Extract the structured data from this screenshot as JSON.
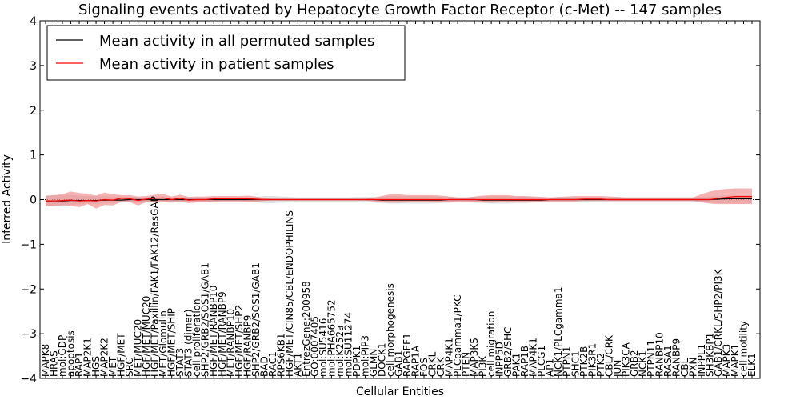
{
  "chart_data": {
    "type": "line",
    "title": "Signaling events activated by Hepatocyte Growth Factor Receptor (c-Met) -- 147 samples",
    "xlabel": "Cellular Entities",
    "ylabel": "Inferred Activity",
    "ylim": [
      -4,
      4
    ],
    "yticks": [
      -4,
      -3,
      -2,
      -1,
      0,
      1,
      2,
      3,
      4
    ],
    "ytick_labels": [
      "−4",
      "−3",
      "−2",
      "−1",
      "0",
      "1",
      "2",
      "3",
      "4"
    ],
    "legend_position": "top-left",
    "categories": [
      "MAPK8",
      "HRAS",
      "mol:GDP",
      "apoptosis",
      "RAP1",
      "MAP2K1",
      "HGS",
      "MAP2K2",
      "MET",
      "HGF/MET",
      "SRC",
      "MET/MUC20",
      "HGF/MET/MUC20",
      "HGF/MET/Paxillin/FAK1/FAK12/RasGAP",
      "MET/Glomulin",
      "HGF/MET/SHIP",
      "STAT3",
      "STAT3 (dimer)",
      "cell proliferation",
      "SHP2/GRB2/SOS1/GAB1",
      "HGF/MET/RANBP10",
      "HGF/MET/RANBP9",
      "MET/RANBP10",
      "HGF/MET/SHP2",
      "HGF/RANBP9",
      "SHP2/GRB2/SOS1/GAB1",
      "BAD",
      "RAC1",
      "RPS6KB1",
      "HGF/MET/CIN85/CBL/ENDOPHILINS",
      "AKT1",
      "EntrezGene:200958",
      "GO:0007405",
      "mol:SU5416",
      "mol:PHA665752",
      "mol:K252a",
      "mol:SU11274",
      "PDPK1",
      "mol:PIP3",
      "GLMN",
      "DOCK1",
      "cell morphogenesis",
      "GAB1",
      "RAPGEF1",
      "RAP1A",
      "FOS",
      "CRKL",
      "CRK",
      "MAP4K1",
      "PLCgamma1/PKC",
      "PTEN",
      "MAP3K5",
      "PI3K",
      "cell migration",
      "INPP5D",
      "GRB2/SHC",
      "PAK1",
      "RAP1B",
      "MAP4K1",
      "PLCG1",
      "AP1",
      "NCK1/PLCgamma1",
      "PTPN1",
      "SHC1",
      "PTK2B",
      "PIK3R1",
      "PTK2",
      "CBL/CRK",
      "JUN",
      "PIK3CA",
      "GRB2",
      "NCK1",
      "PTPN11",
      "RANBP10",
      "RASA1",
      "RANBP9",
      "CBL",
      "PXN",
      "INPPL1",
      "SH3KBP1",
      "GAB1/CRKL/SHP2/PI3K",
      "MAPK3",
      "MAPK1",
      "cell motility",
      "ELK1"
    ],
    "series": [
      {
        "name": "Mean activity in all permuted samples",
        "color": "#000000",
        "band_color": "#bfbfbf",
        "values": [
          -0.03,
          -0.03,
          -0.03,
          -0.02,
          -0.02,
          -0.02,
          -0.02,
          -0.01,
          -0.01,
          -0.01,
          0.0,
          0.0,
          0.0,
          0.0,
          0.0,
          0.0,
          0.0,
          0.0,
          0.0,
          0.0,
          0.0,
          0.0,
          0.0,
          0.0,
          0.0,
          0.0,
          0.0,
          0.0,
          0.0,
          0.0,
          0.0,
          0.0,
          0.0,
          0.0,
          0.0,
          0.0,
          0.0,
          0.0,
          0.0,
          0.0,
          -0.01,
          -0.01,
          -0.01,
          -0.01,
          -0.01,
          -0.01,
          -0.01,
          -0.01,
          0.0,
          0.0,
          0.0,
          0.0,
          -0.01,
          -0.01,
          -0.01,
          -0.01,
          -0.01,
          -0.01,
          -0.01,
          -0.01,
          0.0,
          0.0,
          0.0,
          0.0,
          0.0,
          0.0,
          0.0,
          0.0,
          0.0,
          0.0,
          0.0,
          0.0,
          0.0,
          0.0,
          0.0,
          0.0,
          0.0,
          0.0,
          0.0,
          0.0,
          0.01,
          0.02,
          0.02,
          0.02,
          0.02
        ],
        "lower": [
          -0.14,
          -0.14,
          -0.13,
          -0.12,
          -0.1,
          -0.09,
          -0.09,
          -0.08,
          -0.08,
          -0.07,
          -0.06,
          -0.05,
          -0.05,
          -0.05,
          -0.05,
          -0.05,
          -0.05,
          -0.05,
          -0.05,
          -0.05,
          -0.05,
          -0.05,
          -0.05,
          -0.05,
          -0.05,
          -0.06,
          -0.08,
          -0.08,
          -0.07,
          -0.06,
          -0.05,
          -0.05,
          -0.05,
          -0.05,
          -0.05,
          -0.05,
          -0.05,
          -0.05,
          -0.06,
          -0.07,
          -0.08,
          -0.09,
          -0.09,
          -0.09,
          -0.09,
          -0.09,
          -0.09,
          -0.08,
          -0.07,
          -0.06,
          -0.06,
          -0.07,
          -0.08,
          -0.09,
          -0.09,
          -0.09,
          -0.08,
          -0.08,
          -0.07,
          -0.06,
          -0.05,
          -0.05,
          -0.05,
          -0.05,
          -0.05,
          -0.05,
          -0.05,
          -0.05,
          -0.05,
          -0.05,
          -0.05,
          -0.05,
          -0.05,
          -0.05,
          -0.05,
          -0.05,
          -0.05,
          -0.05,
          -0.06,
          -0.07,
          -0.08,
          -0.08,
          -0.08,
          -0.08,
          -0.08
        ],
        "upper": [
          0.1,
          0.1,
          0.1,
          0.1,
          0.09,
          0.08,
          0.08,
          0.08,
          0.07,
          0.07,
          0.06,
          0.05,
          0.05,
          0.05,
          0.05,
          0.05,
          0.05,
          0.05,
          0.05,
          0.05,
          0.05,
          0.05,
          0.05,
          0.05,
          0.05,
          0.06,
          0.08,
          0.08,
          0.07,
          0.06,
          0.05,
          0.05,
          0.05,
          0.05,
          0.05,
          0.05,
          0.05,
          0.06,
          0.06,
          0.06,
          0.07,
          0.08,
          0.08,
          0.08,
          0.08,
          0.08,
          0.08,
          0.07,
          0.06,
          0.05,
          0.05,
          0.06,
          0.07,
          0.08,
          0.08,
          0.08,
          0.07,
          0.07,
          0.06,
          0.05,
          0.05,
          0.05,
          0.05,
          0.05,
          0.05,
          0.05,
          0.05,
          0.05,
          0.05,
          0.05,
          0.05,
          0.05,
          0.05,
          0.05,
          0.05,
          0.05,
          0.05,
          0.05,
          0.06,
          0.07,
          0.08,
          0.09,
          0.09,
          0.09,
          0.09
        ]
      },
      {
        "name": "Mean activity in patient samples",
        "color": "#ff0000",
        "band_color": "#f08080",
        "values": [
          -0.03,
          -0.03,
          -0.02,
          -0.01,
          -0.03,
          -0.02,
          -0.03,
          0.0,
          -0.01,
          0.03,
          0.02,
          -0.02,
          0.01,
          0.03,
          0.04,
          0.0,
          0.03,
          -0.01,
          0.0,
          0.0,
          0.02,
          0.02,
          0.02,
          0.02,
          0.02,
          0.01,
          0.0,
          0.0,
          0.0,
          0.0,
          0.0,
          0.0,
          0.0,
          0.0,
          0.0,
          0.0,
          0.0,
          0.0,
          0.0,
          0.0,
          0.0,
          0.0,
          0.0,
          0.0,
          0.0,
          0.0,
          0.0,
          0.0,
          0.0,
          0.0,
          0.0,
          0.0,
          0.0,
          0.0,
          0.0,
          0.0,
          0.0,
          0.0,
          0.0,
          0.0,
          0.0,
          0.0,
          0.0,
          0.0,
          0.01,
          0.01,
          0.01,
          0.0,
          0.0,
          0.0,
          0.0,
          0.0,
          0.0,
          0.0,
          0.0,
          0.0,
          0.0,
          0.0,
          0.0,
          0.0,
          0.03,
          0.05,
          0.07,
          0.07,
          0.07
        ],
        "lower": [
          -0.15,
          -0.14,
          -0.13,
          -0.14,
          -0.17,
          -0.1,
          -0.2,
          -0.12,
          -0.13,
          -0.05,
          -0.06,
          -0.13,
          -0.06,
          -0.04,
          -0.04,
          -0.07,
          -0.04,
          -0.08,
          -0.06,
          -0.06,
          -0.05,
          -0.04,
          -0.04,
          -0.04,
          -0.05,
          -0.05,
          -0.03,
          -0.02,
          -0.02,
          -0.02,
          -0.02,
          -0.02,
          -0.02,
          -0.02,
          -0.02,
          -0.02,
          -0.02,
          -0.02,
          -0.02,
          -0.04,
          -0.06,
          -0.07,
          -0.07,
          -0.06,
          -0.06,
          -0.06,
          -0.06,
          -0.06,
          -0.05,
          -0.04,
          -0.04,
          -0.05,
          -0.06,
          -0.07,
          -0.06,
          -0.06,
          -0.05,
          -0.05,
          -0.05,
          -0.05,
          -0.04,
          -0.04,
          -0.04,
          -0.04,
          -0.03,
          -0.03,
          -0.03,
          -0.03,
          -0.03,
          -0.03,
          -0.03,
          -0.03,
          -0.03,
          -0.03,
          -0.03,
          -0.03,
          -0.03,
          -0.03,
          -0.06,
          -0.09,
          -0.1,
          -0.1,
          -0.1,
          -0.1,
          -0.1
        ],
        "upper": [
          0.08,
          0.1,
          0.12,
          0.18,
          0.15,
          0.13,
          0.09,
          0.16,
          0.12,
          0.1,
          0.1,
          0.07,
          0.08,
          0.11,
          0.12,
          0.07,
          0.11,
          0.06,
          0.07,
          0.07,
          0.08,
          0.08,
          0.08,
          0.08,
          0.09,
          0.07,
          0.03,
          0.02,
          0.02,
          0.02,
          0.02,
          0.02,
          0.02,
          0.02,
          0.02,
          0.02,
          0.02,
          0.02,
          0.02,
          0.04,
          0.08,
          0.12,
          0.12,
          0.1,
          0.1,
          0.1,
          0.1,
          0.09,
          0.07,
          0.05,
          0.05,
          0.07,
          0.09,
          0.1,
          0.1,
          0.1,
          0.08,
          0.08,
          0.07,
          0.06,
          0.05,
          0.06,
          0.07,
          0.08,
          0.08,
          0.08,
          0.08,
          0.07,
          0.06,
          0.05,
          0.05,
          0.05,
          0.05,
          0.05,
          0.05,
          0.05,
          0.05,
          0.05,
          0.12,
          0.18,
          0.22,
          0.24,
          0.25,
          0.25,
          0.25
        ]
      }
    ]
  }
}
